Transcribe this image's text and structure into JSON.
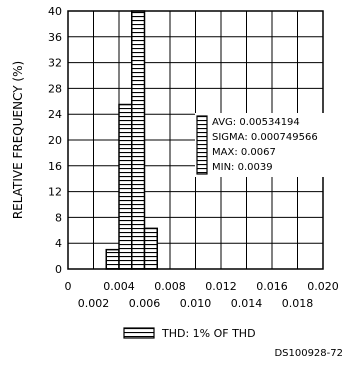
{
  "chart_data": {
    "type": "bar",
    "ylabel": "RELATIVE FREQUENCY (%)",
    "ylim": [
      0,
      40
    ],
    "yticks": [
      "0",
      "4",
      "8",
      "12",
      "16",
      "20",
      "24",
      "28",
      "32",
      "36",
      "40"
    ],
    "xlim": [
      0,
      0.02
    ],
    "xticks_top": [
      "0",
      "0.004",
      "0.008",
      "0.012",
      "0.016",
      "0.020"
    ],
    "xticks_bottom": [
      "0.002",
      "0.006",
      "0.010",
      "0.014",
      "0.018"
    ],
    "bars": [
      {
        "x0": 0.003,
        "x1": 0.004,
        "value": 3
      },
      {
        "x0": 0.004,
        "x1": 0.005,
        "value": 25.5
      },
      {
        "x0": 0.005,
        "x1": 0.006,
        "value": 40
      },
      {
        "x0": 0.006,
        "x1": 0.007,
        "value": 6.3
      }
    ],
    "stats": {
      "avg": "AVG: 0.00534194",
      "sigma": "SIGMA: 0.000749566",
      "max": "MAX: 0.0067",
      "min": "MIN: 0.0039"
    },
    "legend": "THD: 1% OF THD",
    "code": "DS100928-72",
    "grid": true,
    "pattern": "horizontal-hatch"
  }
}
